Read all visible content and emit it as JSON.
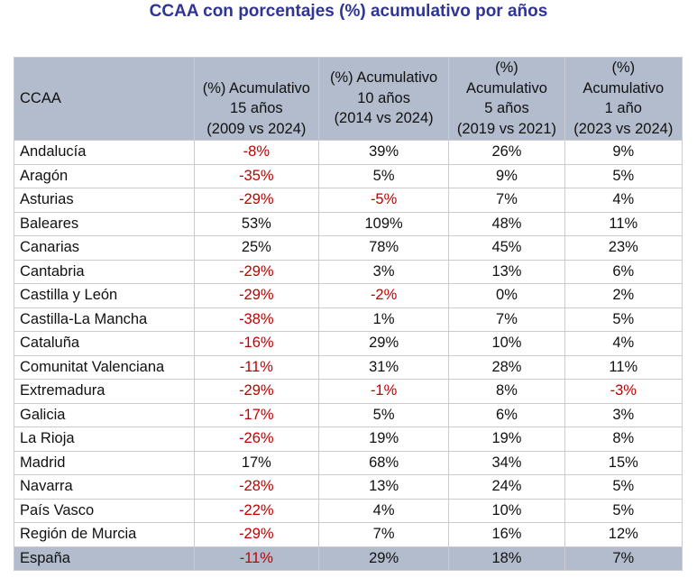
{
  "title": "CCAA con porcentajes (%) acumulativo por años",
  "table": {
    "header": [
      [
        "CCAA"
      ],
      [
        "(%) Acumulativo",
        "15 años",
        "(2009 vs 2024)"
      ],
      [
        "(%) Acumulativo",
        "10 años",
        "(2014 vs 2024)"
      ],
      [
        "(%)",
        "Acumulativo",
        "5 años",
        "(2019 vs 2021)"
      ],
      [
        "(%)",
        "Acumulativo",
        "1 año",
        "(2023 vs 2024)"
      ]
    ],
    "rows": [
      [
        "Andalucía",
        "-8%",
        "39%",
        "26%",
        "9%"
      ],
      [
        "Aragón",
        "-35%",
        "5%",
        "9%",
        "5%"
      ],
      [
        "Asturias",
        "-29%",
        "-5%",
        "7%",
        "4%"
      ],
      [
        "Baleares",
        "53%",
        "109%",
        "48%",
        "11%"
      ],
      [
        "Canarias",
        "25%",
        "78%",
        "45%",
        "23%"
      ],
      [
        "Cantabria",
        "-29%",
        "3%",
        "13%",
        "6%"
      ],
      [
        "Castilla y León",
        "-29%",
        "-2%",
        "0%",
        "2%"
      ],
      [
        "Castilla-La Mancha",
        "-38%",
        "1%",
        "7%",
        "5%"
      ],
      [
        "Cataluña",
        "-16%",
        "29%",
        "10%",
        "4%"
      ],
      [
        "Comunitat Valenciana",
        "-11%",
        "31%",
        "28%",
        "11%"
      ],
      [
        "Extremadura",
        "-29%",
        "-1%",
        "8%",
        "-3%"
      ],
      [
        "Galicia",
        "-17%",
        "5%",
        "6%",
        "3%"
      ],
      [
        "La Rioja",
        "-26%",
        "19%",
        "19%",
        "8%"
      ],
      [
        "Madrid",
        "17%",
        "68%",
        "34%",
        "15%"
      ],
      [
        "Navarra",
        "-28%",
        "13%",
        "24%",
        "5%"
      ],
      [
        "País Vasco",
        "-22%",
        "4%",
        "10%",
        "5%"
      ],
      [
        "Región de Murcia",
        "-29%",
        "7%",
        "16%",
        "12%"
      ],
      [
        "España",
        "-11%",
        "29%",
        "18%",
        "7%"
      ]
    ]
  }
}
